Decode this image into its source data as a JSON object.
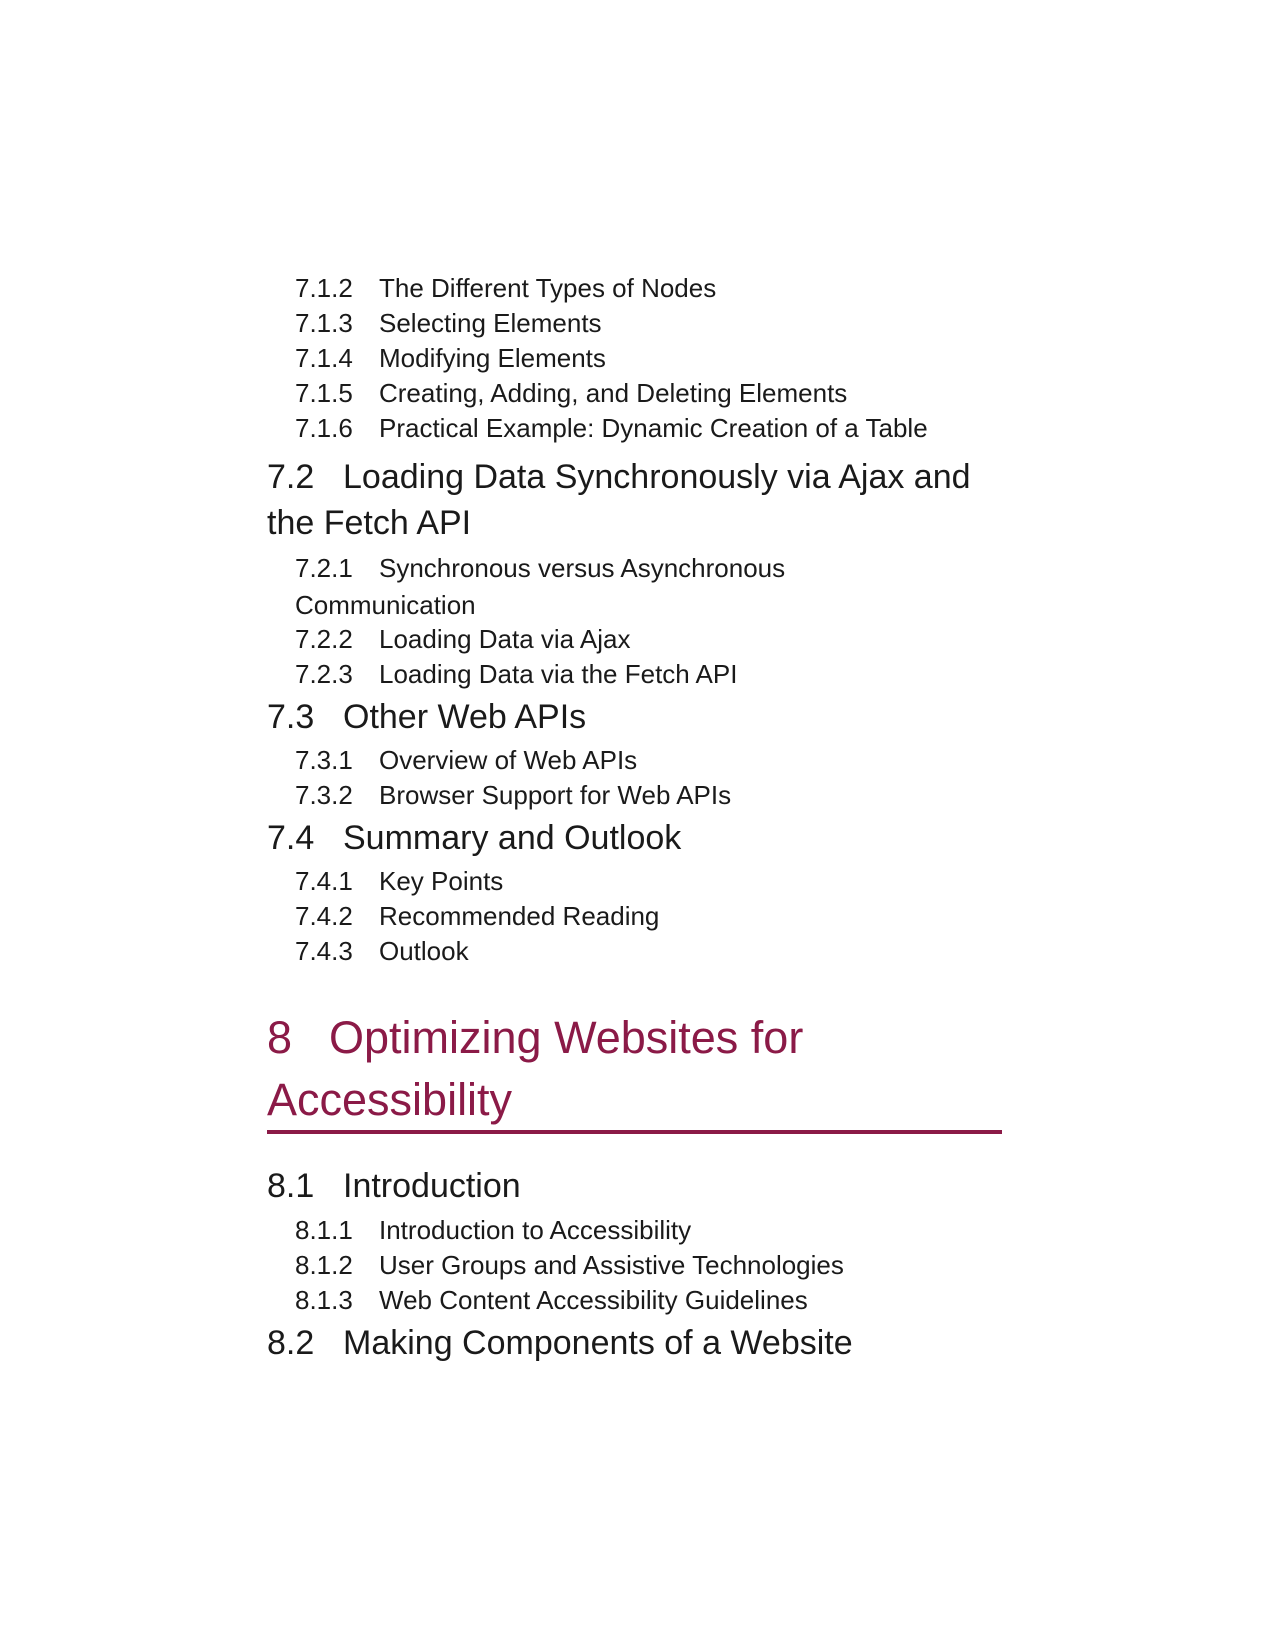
{
  "colors": {
    "chapter_accent": "#8b1a47",
    "text": "#1a1a1a"
  },
  "entries": [
    {
      "num": "7.1.2",
      "title": "The Different Types of Nodes"
    },
    {
      "num": "7.1.3",
      "title": "Selecting Elements"
    },
    {
      "num": "7.1.4",
      "title": "Modifying Elements"
    },
    {
      "num": "7.1.5",
      "title": "Creating, Adding, and Deleting Elements"
    },
    {
      "num": "7.1.6",
      "title": "Practical Example: Dynamic Creation of a Table"
    },
    {
      "num": "7.2",
      "title": "Loading Data Synchronously via Ajax and the Fetch API"
    },
    {
      "num": "7.2.1",
      "title": "Synchronous versus Asynchronous Communication"
    },
    {
      "num": "7.2.2",
      "title": "Loading Data via Ajax"
    },
    {
      "num": "7.2.3",
      "title": "Loading Data via the Fetch API"
    },
    {
      "num": "7.3",
      "title": "Other Web APIs"
    },
    {
      "num": "7.3.1",
      "title": "Overview of Web APIs"
    },
    {
      "num": "7.3.2",
      "title": "Browser Support for Web APIs"
    },
    {
      "num": "7.4",
      "title": "Summary and Outlook"
    },
    {
      "num": "7.4.1",
      "title": "Key Points"
    },
    {
      "num": "7.4.2",
      "title": "Recommended Reading"
    },
    {
      "num": "7.4.3",
      "title": "Outlook"
    },
    {
      "num": "8",
      "title": "Optimizing Websites for Accessibility"
    },
    {
      "num": "8.1",
      "title": "Introduction"
    },
    {
      "num": "8.1.1",
      "title": "Introduction to Accessibility"
    },
    {
      "num": "8.1.2",
      "title": "User Groups and Assistive Technologies"
    },
    {
      "num": "8.1.3",
      "title": "Web Content Accessibility Guidelines"
    },
    {
      "num": "8.2",
      "title": "Making Components of a Website"
    }
  ]
}
